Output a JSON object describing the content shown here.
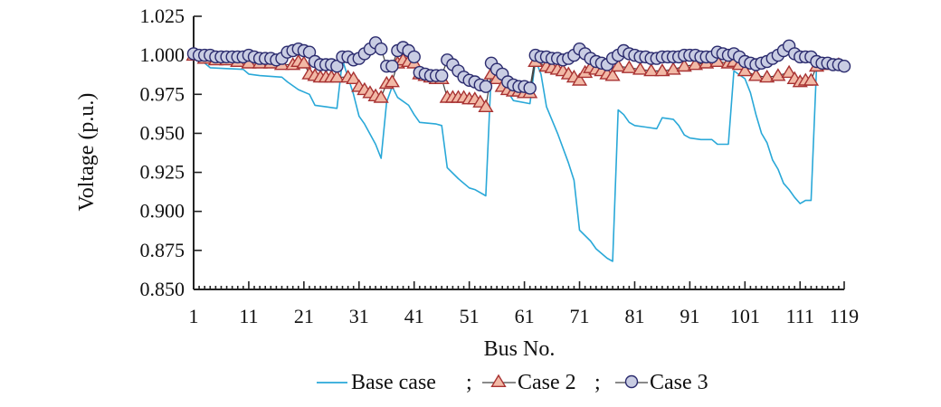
{
  "chart_data": {
    "type": "line",
    "xlabel": "Bus No.",
    "ylabel": "Voltage (p.u.)",
    "xlim": [
      1,
      119
    ],
    "ylim": [
      0.85,
      1.025
    ],
    "x_ticks": [
      "1",
      "11",
      "21",
      "31",
      "41",
      "51",
      "61",
      "71",
      "81",
      "91",
      "101",
      "111",
      "119"
    ],
    "y_ticks": [
      "0.850",
      "0.875",
      "0.900",
      "0.925",
      "0.950",
      "0.975",
      "1.000",
      "1.025"
    ],
    "legend_placement": "bottom-center",
    "legend_separator": ";",
    "series": [
      {
        "name": "Base case",
        "color": "#29a8d8",
        "marker": "none",
        "points": [
          [
            1,
            1.0
          ],
          [
            2,
            0.998
          ],
          [
            4,
            0.992
          ],
          [
            10,
            0.991
          ],
          [
            11,
            0.988
          ],
          [
            13,
            0.987
          ],
          [
            17,
            0.986
          ],
          [
            18,
            0.983
          ],
          [
            20,
            0.978
          ],
          [
            22,
            0.975
          ],
          [
            23,
            0.968
          ],
          [
            25,
            0.967
          ],
          [
            27,
            0.966
          ],
          [
            28,
            0.997
          ],
          [
            30,
            0.975
          ],
          [
            31,
            0.961
          ],
          [
            32,
            0.956
          ],
          [
            34,
            0.943
          ],
          [
            35,
            0.934
          ],
          [
            36,
            0.97
          ],
          [
            37,
            0.98
          ],
          [
            38,
            0.973
          ],
          [
            40,
            0.968
          ],
          [
            41,
            0.962
          ],
          [
            42,
            0.957
          ],
          [
            45,
            0.956
          ],
          [
            46,
            0.955
          ],
          [
            47,
            0.928
          ],
          [
            49,
            0.921
          ],
          [
            51,
            0.915
          ],
          [
            52,
            0.914
          ],
          [
            54,
            0.91
          ],
          [
            55,
            0.99
          ],
          [
            56,
            0.985
          ],
          [
            57,
            0.982
          ],
          [
            59,
            0.971
          ],
          [
            62,
            0.969
          ],
          [
            63,
            0.997
          ],
          [
            64,
            0.988
          ],
          [
            65,
            0.967
          ],
          [
            67,
            0.95
          ],
          [
            69,
            0.931
          ],
          [
            70,
            0.92
          ],
          [
            71,
            0.888
          ],
          [
            73,
            0.881
          ],
          [
            74,
            0.876
          ],
          [
            76,
            0.87
          ],
          [
            77,
            0.868
          ],
          [
            78,
            0.965
          ],
          [
            79,
            0.962
          ],
          [
            80,
            0.957
          ],
          [
            81,
            0.955
          ],
          [
            83,
            0.954
          ],
          [
            85,
            0.953
          ],
          [
            86,
            0.96
          ],
          [
            88,
            0.959
          ],
          [
            89,
            0.955
          ],
          [
            90,
            0.949
          ],
          [
            91,
            0.947
          ],
          [
            93,
            0.946
          ],
          [
            95,
            0.946
          ],
          [
            96,
            0.943
          ],
          [
            98,
            0.943
          ],
          [
            99,
            0.99
          ],
          [
            101,
            0.985
          ],
          [
            102,
            0.976
          ],
          [
            103,
            0.962
          ],
          [
            104,
            0.95
          ],
          [
            105,
            0.944
          ],
          [
            106,
            0.933
          ],
          [
            107,
            0.927
          ],
          [
            108,
            0.918
          ],
          [
            109,
            0.914
          ],
          [
            110,
            0.909
          ],
          [
            111,
            0.905
          ],
          [
            112,
            0.907
          ],
          [
            113,
            0.907
          ],
          [
            114,
            0.993
          ],
          [
            116,
            0.994
          ],
          [
            118,
            0.993
          ]
        ]
      },
      {
        "name": "Case 2",
        "color": "#a83232",
        "marker": "triangle",
        "points": [
          [
            1,
            1.0
          ],
          [
            3,
            0.998
          ],
          [
            5,
            0.997
          ],
          [
            7,
            0.997
          ],
          [
            9,
            0.996
          ],
          [
            11,
            0.995
          ],
          [
            13,
            0.995
          ],
          [
            15,
            0.995
          ],
          [
            17,
            0.994
          ],
          [
            19,
            0.994
          ],
          [
            20,
            0.996
          ],
          [
            21,
            0.995
          ],
          [
            22,
            0.988
          ],
          [
            23,
            0.987
          ],
          [
            24,
            0.986
          ],
          [
            25,
            0.986
          ],
          [
            26,
            0.986
          ],
          [
            27,
            0.986
          ],
          [
            29,
            0.986
          ],
          [
            30,
            0.985
          ],
          [
            31,
            0.98
          ],
          [
            32,
            0.978
          ],
          [
            33,
            0.976
          ],
          [
            34,
            0.974
          ],
          [
            35,
            0.973
          ],
          [
            36,
            0.982
          ],
          [
            37,
            0.983
          ],
          [
            38,
            0.995
          ],
          [
            39,
            0.997
          ],
          [
            40,
            0.996
          ],
          [
            41,
            0.995
          ],
          [
            42,
            0.988
          ],
          [
            43,
            0.987
          ],
          [
            44,
            0.986
          ],
          [
            45,
            0.985
          ],
          [
            46,
            0.985
          ],
          [
            47,
            0.973
          ],
          [
            48,
            0.973
          ],
          [
            49,
            0.973
          ],
          [
            50,
            0.973
          ],
          [
            51,
            0.972
          ],
          [
            52,
            0.972
          ],
          [
            53,
            0.97
          ],
          [
            54,
            0.967
          ],
          [
            55,
            0.988
          ],
          [
            56,
            0.985
          ],
          [
            57,
            0.98
          ],
          [
            58,
            0.978
          ],
          [
            59,
            0.977
          ],
          [
            60,
            0.977
          ],
          [
            61,
            0.976
          ],
          [
            62,
            0.976
          ],
          [
            63,
            0.996
          ],
          [
            65,
            0.993
          ],
          [
            66,
            0.992
          ],
          [
            67,
            0.991
          ],
          [
            68,
            0.99
          ],
          [
            69,
            0.988
          ],
          [
            70,
            0.986
          ],
          [
            71,
            0.984
          ],
          [
            72,
            0.989
          ],
          [
            73,
            0.992
          ],
          [
            74,
            0.991
          ],
          [
            75,
            0.99
          ],
          [
            76,
            0.988
          ],
          [
            77,
            0.987
          ],
          [
            78,
            0.993
          ],
          [
            80,
            0.992
          ],
          [
            82,
            0.991
          ],
          [
            84,
            0.99
          ],
          [
            86,
            0.99
          ],
          [
            88,
            0.991
          ],
          [
            90,
            0.993
          ],
          [
            92,
            0.994
          ],
          [
            94,
            0.995
          ],
          [
            96,
            0.996
          ],
          [
            98,
            0.995
          ],
          [
            99,
            0.996
          ],
          [
            100,
            0.994
          ],
          [
            101,
            0.99
          ],
          [
            103,
            0.987
          ],
          [
            105,
            0.986
          ],
          [
            107,
            0.987
          ],
          [
            109,
            0.989
          ],
          [
            110,
            0.985
          ],
          [
            111,
            0.983
          ],
          [
            112,
            0.984
          ],
          [
            113,
            0.984
          ],
          [
            114,
            0.993
          ],
          [
            116,
            0.994
          ],
          [
            118,
            0.994
          ]
        ]
      },
      {
        "name": "Case 3",
        "color": "#2b2b6e",
        "marker": "circle",
        "points": [
          [
            1,
            1.001
          ],
          [
            2,
            1.0
          ],
          [
            3,
            1.0
          ],
          [
            4,
            1.0
          ],
          [
            5,
            0.999
          ],
          [
            6,
            0.999
          ],
          [
            7,
            0.999
          ],
          [
            8,
            0.999
          ],
          [
            9,
            0.999
          ],
          [
            10,
            0.999
          ],
          [
            11,
            1.0
          ],
          [
            12,
            0.999
          ],
          [
            13,
            0.998
          ],
          [
            14,
            0.998
          ],
          [
            15,
            0.998
          ],
          [
            16,
            0.997
          ],
          [
            17,
            0.998
          ],
          [
            18,
            1.002
          ],
          [
            19,
            1.003
          ],
          [
            20,
            1.004
          ],
          [
            21,
            1.003
          ],
          [
            22,
            1.002
          ],
          [
            23,
            0.996
          ],
          [
            24,
            0.994
          ],
          [
            25,
            0.994
          ],
          [
            26,
            0.994
          ],
          [
            27,
            0.993
          ],
          [
            28,
            0.999
          ],
          [
            29,
            0.999
          ],
          [
            30,
            0.997
          ],
          [
            31,
            0.998
          ],
          [
            32,
            1.001
          ],
          [
            33,
            1.004
          ],
          [
            34,
            1.008
          ],
          [
            35,
            1.004
          ],
          [
            36,
            0.993
          ],
          [
            37,
            0.993
          ],
          [
            38,
            1.003
          ],
          [
            39,
            1.005
          ],
          [
            40,
            1.003
          ],
          [
            41,
            0.999
          ],
          [
            42,
            0.989
          ],
          [
            43,
            0.988
          ],
          [
            44,
            0.987
          ],
          [
            45,
            0.987
          ],
          [
            46,
            0.987
          ],
          [
            47,
            0.997
          ],
          [
            48,
            0.994
          ],
          [
            49,
            0.99
          ],
          [
            50,
            0.986
          ],
          [
            51,
            0.984
          ],
          [
            52,
            0.983
          ],
          [
            53,
            0.981
          ],
          [
            54,
            0.98
          ],
          [
            55,
            0.995
          ],
          [
            56,
            0.991
          ],
          [
            57,
            0.988
          ],
          [
            58,
            0.983
          ],
          [
            59,
            0.981
          ],
          [
            60,
            0.98
          ],
          [
            61,
            0.98
          ],
          [
            62,
            0.979
          ],
          [
            63,
            1.0
          ],
          [
            64,
            0.999
          ],
          [
            65,
            0.999
          ],
          [
            66,
            0.998
          ],
          [
            67,
            0.998
          ],
          [
            68,
            0.997
          ],
          [
            69,
            0.998
          ],
          [
            70,
            1.0
          ],
          [
            71,
            1.004
          ],
          [
            72,
            1.001
          ],
          [
            73,
            0.998
          ],
          [
            74,
            0.996
          ],
          [
            75,
            0.995
          ],
          [
            76,
            0.994
          ],
          [
            77,
            0.998
          ],
          [
            78,
            1.0
          ],
          [
            79,
            1.003
          ],
          [
            80,
            1.001
          ],
          [
            81,
            1.0
          ],
          [
            82,
            0.999
          ],
          [
            83,
            0.999
          ],
          [
            84,
            0.998
          ],
          [
            85,
            0.998
          ],
          [
            86,
            0.999
          ],
          [
            87,
            0.999
          ],
          [
            88,
            0.999
          ],
          [
            89,
            0.999
          ],
          [
            90,
            1.0
          ],
          [
            91,
            1.0
          ],
          [
            92,
            1.0
          ],
          [
            93,
            0.999
          ],
          [
            94,
            0.999
          ],
          [
            95,
            0.999
          ],
          [
            96,
            1.002
          ],
          [
            97,
            1.001
          ],
          [
            98,
            1.0
          ],
          [
            99,
            1.001
          ],
          [
            100,
            0.999
          ],
          [
            101,
            0.996
          ],
          [
            102,
            0.995
          ],
          [
            103,
            0.994
          ],
          [
            104,
            0.995
          ],
          [
            105,
            0.996
          ],
          [
            106,
            0.998
          ],
          [
            107,
            1.0
          ],
          [
            108,
            1.003
          ],
          [
            109,
            1.006
          ],
          [
            110,
            1.001
          ],
          [
            111,
            0.999
          ],
          [
            112,
            0.999
          ],
          [
            113,
            0.999
          ],
          [
            114,
            0.996
          ],
          [
            115,
            0.995
          ],
          [
            116,
            0.995
          ],
          [
            117,
            0.994
          ],
          [
            118,
            0.994
          ],
          [
            119,
            0.993
          ]
        ]
      }
    ]
  }
}
